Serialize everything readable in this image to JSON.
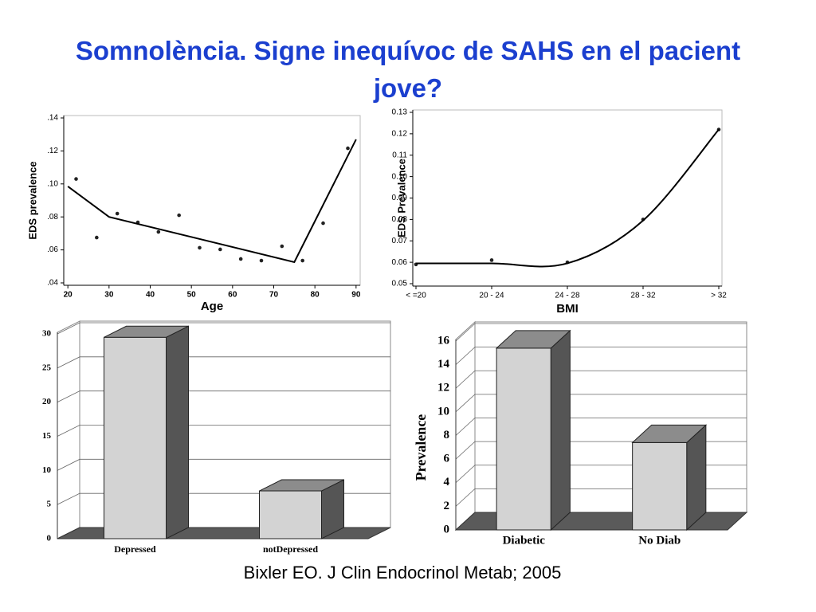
{
  "title": "Somnolència. Signe inequívoc de SAHS en el pacient jove?",
  "citation": "Bixler EO. J Clin Endocrinol Metab; 2005",
  "chart_data": [
    {
      "type": "scatter",
      "x_label": "Age",
      "y_label": "EDS prevalence",
      "xlim": [
        19,
        91
      ],
      "xticks": [
        20,
        30,
        40,
        50,
        60,
        70,
        80,
        90
      ],
      "ylim": [
        0.04,
        0.14
      ],
      "yticks": [
        {
          "value": 0.04,
          "label": ".04"
        },
        {
          "value": 0.06,
          "label": ".06"
        },
        {
          "value": 0.08,
          "label": ".08"
        },
        {
          "value": 0.1,
          "label": ".10"
        },
        {
          "value": 0.12,
          "label": ".12"
        },
        {
          "value": 0.14,
          "label": ".14"
        }
      ],
      "series": [
        {
          "mode": "markers",
          "color": "#222222",
          "x": [
            22,
            27,
            32,
            37,
            42,
            47,
            52,
            57,
            62,
            67,
            72,
            77,
            82,
            88
          ],
          "values": [
            0.103,
            0.0675,
            0.082,
            0.0767,
            0.0709,
            0.081,
            0.0613,
            0.0603,
            0.0545,
            0.0535,
            0.0622,
            0.0535,
            0.0762,
            0.1216
          ]
        },
        {
          "mode": "line",
          "color": "#000000",
          "x": [
            20,
            30,
            75,
            90
          ],
          "values": [
            0.0985,
            0.08,
            0.0526,
            0.127
          ]
        }
      ]
    },
    {
      "type": "line",
      "x_label": "BMI",
      "y_label": "EDS Prevalence",
      "categories": [
        "< =20",
        "20 - 24",
        "24 - 28",
        "28 - 32",
        "> 32"
      ],
      "ylim": [
        0.05,
        0.13
      ],
      "yticks": [
        0.05,
        0.06,
        0.07,
        0.08,
        0.09,
        {
          "value": 0.1,
          "label": "0.10"
        },
        0.11,
        0.12,
        0.13
      ],
      "series": [
        {
          "mode": "markers",
          "color": "#222222",
          "values": [
            0.059,
            0.061,
            0.06,
            0.08,
            0.122
          ]
        },
        {
          "mode": "smooth",
          "color": "#000000",
          "values": [
            0.0595,
            0.0595,
            0.0595,
            0.0795,
            0.122
          ]
        }
      ]
    },
    {
      "type": "bar3d",
      "categories": [
        "Depressed",
        "notDepressed"
      ],
      "values": [
        29.5,
        7
      ],
      "color": "#d3d3d3",
      "ylim": [
        0,
        30
      ],
      "yticks": [
        0,
        5,
        10,
        15,
        20,
        25,
        30
      ],
      "grid": true
    },
    {
      "type": "bar3d",
      "y_label": "Prevalence",
      "categories": [
        "Diabetic",
        "No Diab"
      ],
      "values": [
        15.4,
        7.4
      ],
      "color": "#d3d3d3",
      "ylim": [
        0,
        16
      ],
      "yticks": [
        0,
        2,
        4,
        6,
        8,
        10,
        12,
        14,
        16
      ],
      "grid": true
    }
  ]
}
